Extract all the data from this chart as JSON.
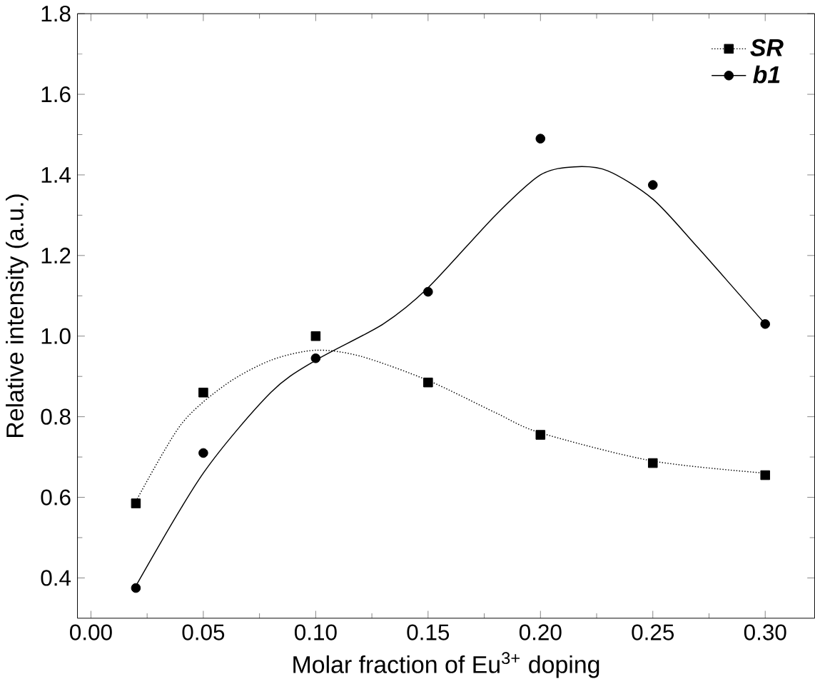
{
  "chart_data": {
    "type": "scatter",
    "xlabel": "Molar fraction of Eu$^{3+}$ doping",
    "ylabel": "Relative intensity (a.u.)",
    "xlim": [
      -0.006,
      0.322
    ],
    "ylim": [
      0.3,
      1.8
    ],
    "xticks": [
      {
        "value": 0,
        "label": "0.00"
      },
      {
        "value": 0.05,
        "label": "0.05"
      },
      {
        "value": 0.1,
        "label": "0.10"
      },
      {
        "value": 0.15,
        "label": "0.15"
      },
      {
        "value": 0.2,
        "label": "0.20"
      },
      {
        "value": 0.25,
        "label": "0.25"
      },
      {
        "value": 0.3,
        "label": "0.30"
      }
    ],
    "yticks": [
      0.4,
      0.6,
      0.8,
      {
        "value": 1,
        "label": "1.0"
      },
      1.2,
      1.4,
      1.6,
      1.8
    ],
    "legend": "top right",
    "grid": false,
    "series": [
      {
        "name": "SR",
        "color": "#000000",
        "marker": "square",
        "line_style": "dotted",
        "x": [
          0.02,
          0.05,
          0.1,
          0.15,
          0.2,
          0.25,
          0.3
        ],
        "values": [
          0.585,
          0.86,
          1.0,
          0.885,
          0.755,
          0.685,
          0.655
        ]
      },
      {
        "name": "b1",
        "color": "#000000",
        "marker": "circle",
        "line_style": "solid",
        "x": [
          0.02,
          0.05,
          0.1,
          0.15,
          0.2,
          0.25,
          0.3
        ],
        "values": [
          0.375,
          0.71,
          0.945,
          1.11,
          1.49,
          1.375,
          1.03
        ]
      },
      {
        "type": "line",
        "color": "#000000",
        "line_style": "dotted",
        "marker": "none",
        "x": [
          0.02,
          0.04,
          0.06,
          0.08,
          0.1,
          0.12,
          0.15,
          0.18,
          0.2,
          0.25,
          0.3
        ],
        "values": [
          0.59,
          0.78,
          0.88,
          0.94,
          0.965,
          0.95,
          0.89,
          0.81,
          0.76,
          0.69,
          0.66
        ]
      },
      {
        "type": "line",
        "color": "#000000",
        "line_style": "solid",
        "marker": "none",
        "x": [
          0.02,
          0.05,
          0.08,
          0.1,
          0.13,
          0.15,
          0.18,
          0.2,
          0.215,
          0.23,
          0.25,
          0.27,
          0.3
        ],
        "values": [
          0.38,
          0.66,
          0.86,
          0.94,
          1.03,
          1.12,
          1.3,
          1.4,
          1.42,
          1.41,
          1.34,
          1.22,
          1.03
        ]
      }
    ]
  }
}
